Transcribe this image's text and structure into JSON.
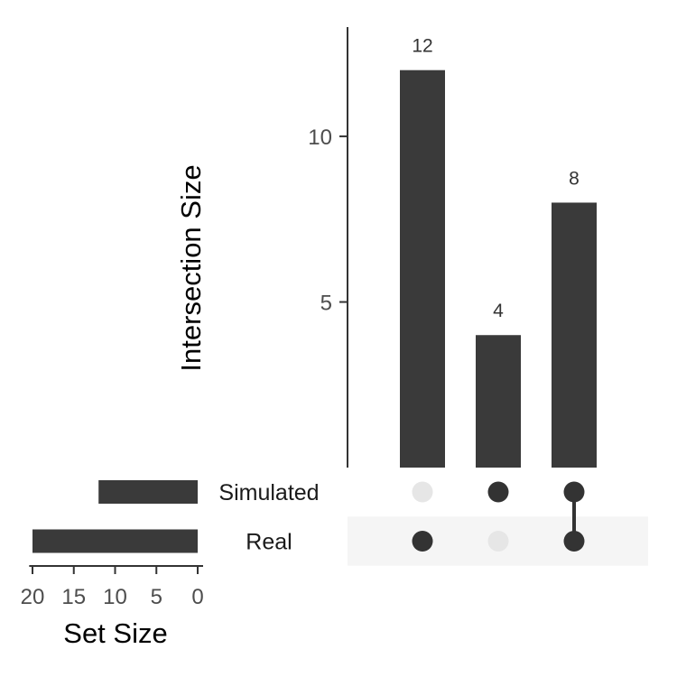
{
  "chart_data": {
    "type": "upset",
    "sets": [
      "Simulated",
      "Real"
    ],
    "set_sizes": [
      {
        "set": "Simulated",
        "value": 12
      },
      {
        "set": "Real",
        "value": 20
      }
    ],
    "intersections": [
      {
        "members": [
          "Real"
        ],
        "value": 12,
        "label": "12"
      },
      {
        "members": [
          "Simulated"
        ],
        "value": 4,
        "label": "4"
      },
      {
        "members": [
          "Simulated",
          "Real"
        ],
        "value": 8,
        "label": "8"
      }
    ],
    "intersection_axis": {
      "ylabel": "Intersection Size",
      "ticks": [
        5,
        10
      ],
      "tick_labels": [
        "5",
        "10"
      ],
      "ylim": [
        0,
        13.3
      ]
    },
    "set_size_axis": {
      "xlabel": "Set Size",
      "ticks": [
        20,
        15,
        10,
        5,
        0
      ],
      "tick_labels": [
        "20",
        "15",
        "10",
        "5",
        "0"
      ],
      "xlim": [
        20.4,
        0
      ],
      "reversed": true
    },
    "colors": {
      "bar": "#3a3a3a",
      "dot_active": "#333333",
      "dot_inactive": "#e6e6e6",
      "stripe": "#f5f5f5",
      "axis": "#333333"
    }
  }
}
